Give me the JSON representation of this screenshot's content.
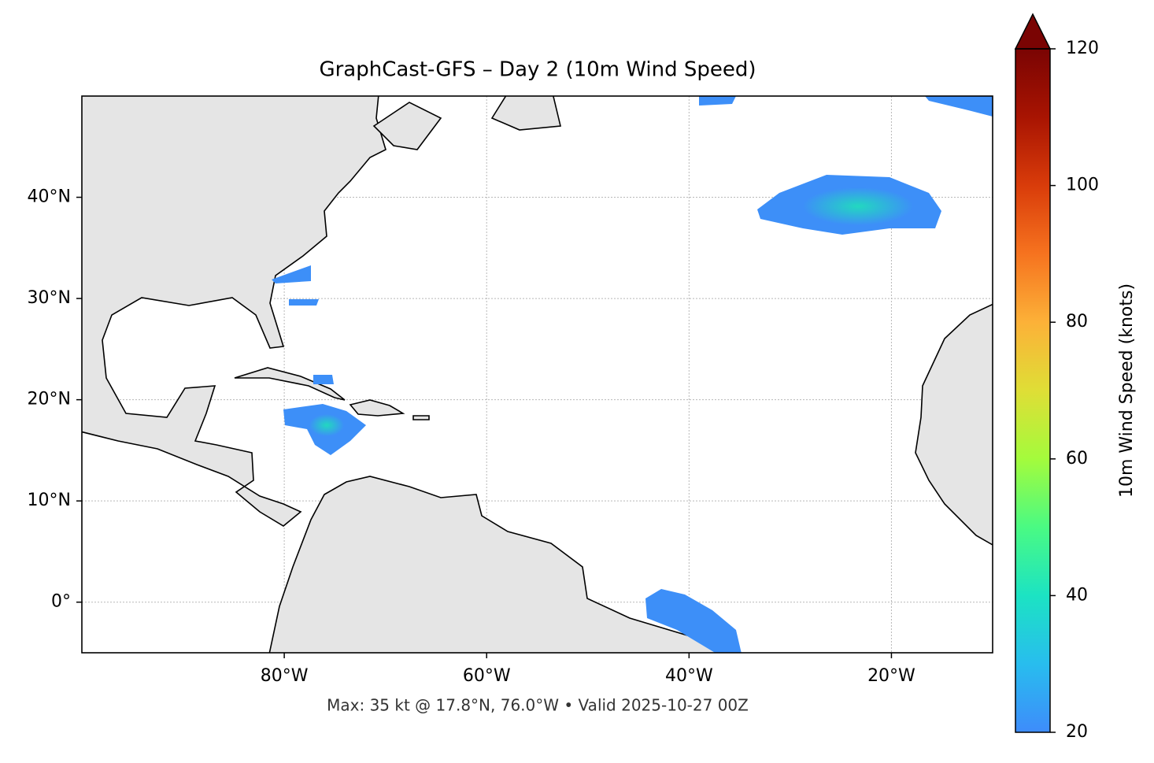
{
  "title": "GraphCast-GFS – Day 2 (10m Wind Speed)",
  "footer": "Max: 35 kt @ 17.8°N, 76.0°W • Valid 2025-10-27 00Z",
  "map": {
    "xlim": [
      -100,
      -10
    ],
    "ylim": [
      -5,
      50
    ],
    "grid": true,
    "xticks": [
      {
        "value": -80,
        "label": "80°W"
      },
      {
        "value": -60,
        "label": "60°W"
      },
      {
        "value": -40,
        "label": "40°W"
      },
      {
        "value": -20,
        "label": "20°W"
      }
    ],
    "yticks": [
      {
        "value": 0,
        "label": "0°"
      },
      {
        "value": 10,
        "label": "10°N"
      },
      {
        "value": 20,
        "label": "20°N"
      },
      {
        "value": 30,
        "label": "30°N"
      },
      {
        "value": 40,
        "label": "40°N"
      }
    ]
  },
  "colorbar": {
    "label": "10m Wind Speed (knots)",
    "lim": [
      20,
      120
    ],
    "ticks": [
      20,
      40,
      60,
      80,
      100,
      120
    ]
  }
}
